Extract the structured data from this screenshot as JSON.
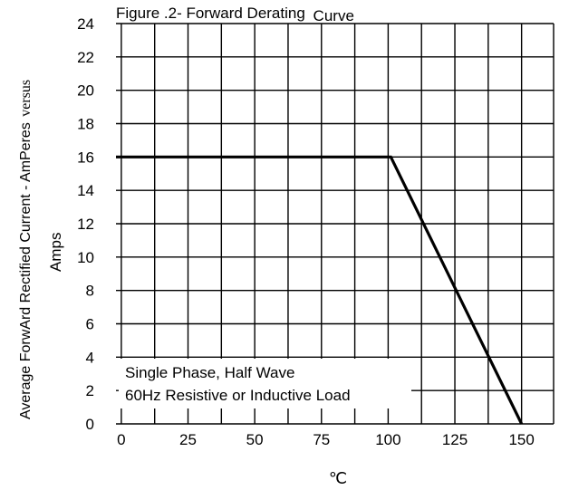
{
  "chart_data": {
    "type": "line",
    "title_part1": "Figure .2- Forward Derating",
    "title_part2": "Curve",
    "ylabel_part1": "Average ForwArd Rectified Current  -  AmPeres",
    "ylabel_part2": "versus",
    "ylabel_line2": "Amps",
    "xlabel": "℃",
    "x_ticks": [
      "0",
      "25",
      "50",
      "75",
      "100",
      "125",
      "150"
    ],
    "y_ticks": [
      "0",
      "2",
      "4",
      "6",
      "8",
      "10",
      "12",
      "14",
      "16",
      "18",
      "20",
      "22",
      "24"
    ],
    "xlim": [
      -2,
      162
    ],
    "ylim": [
      0,
      24
    ],
    "grid": true,
    "series": [
      {
        "x": [
          -2,
          101,
          150
        ],
        "y": [
          16,
          16,
          0
        ]
      }
    ],
    "annotation": {
      "line1": "Single Phase, Half Wave",
      "line2": "60Hz Resistive or Inductive Load"
    }
  }
}
